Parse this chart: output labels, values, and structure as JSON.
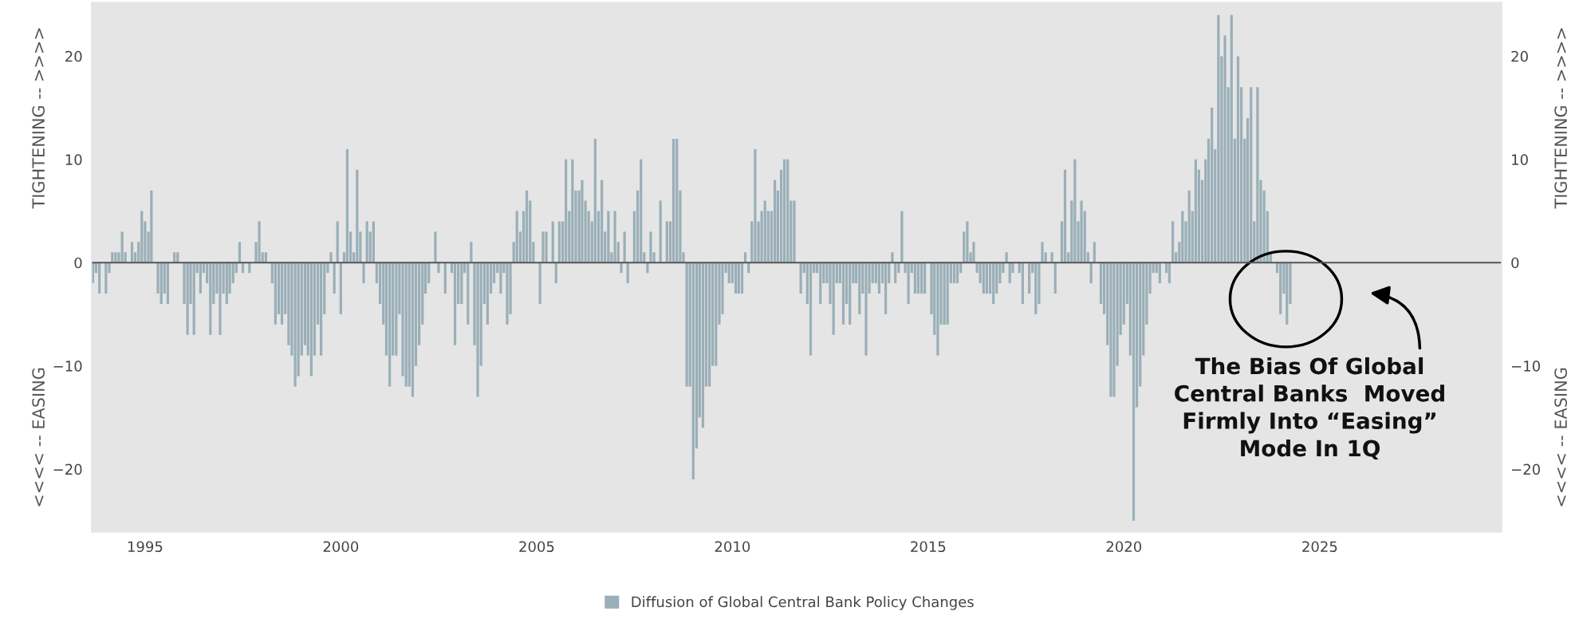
{
  "chart_data": {
    "type": "bar",
    "x": [
      "1993-09",
      "1993-10",
      "1993-11",
      "1993-12",
      "1994-01",
      "1994-02",
      "1994-03",
      "1994-04",
      "1994-05",
      "1994-06",
      "1994-07",
      "1994-08",
      "1994-09",
      "1994-10",
      "1994-11",
      "1994-12",
      "1995-01",
      "1995-02",
      "1995-03",
      "1995-04",
      "1995-05",
      "1995-06",
      "1995-07",
      "1995-08",
      "1995-09",
      "1995-10",
      "1995-11",
      "1995-12",
      "1996-01",
      "1996-02",
      "1996-03",
      "1996-04",
      "1996-05",
      "1996-06",
      "1996-07",
      "1996-08",
      "1996-09",
      "1996-10",
      "1996-11",
      "1996-12",
      "1997-01",
      "1997-02",
      "1997-03",
      "1997-04",
      "1997-05",
      "1997-06",
      "1997-07",
      "1997-08",
      "1997-09",
      "1997-10",
      "1997-11",
      "1997-12",
      "1998-01",
      "1998-02",
      "1998-03",
      "1998-04",
      "1998-05",
      "1998-06",
      "1998-07",
      "1998-08",
      "1998-09",
      "1998-10",
      "1998-11",
      "1998-12",
      "1999-01",
      "1999-02",
      "1999-03",
      "1999-04",
      "1999-05",
      "1999-06",
      "1999-07",
      "1999-08",
      "1999-09",
      "1999-10",
      "1999-11",
      "1999-12",
      "2000-01",
      "2000-02",
      "2000-03",
      "2000-04",
      "2000-05",
      "2000-06",
      "2000-07",
      "2000-08",
      "2000-09",
      "2000-10",
      "2000-11",
      "2000-12",
      "2001-01",
      "2001-02",
      "2001-03",
      "2001-04",
      "2001-05",
      "2001-06",
      "2001-07",
      "2001-08",
      "2001-09",
      "2001-10",
      "2001-11",
      "2001-12",
      "2002-01",
      "2002-02",
      "2002-03",
      "2002-04",
      "2002-05",
      "2002-06",
      "2002-07",
      "2002-08",
      "2002-09",
      "2002-10",
      "2002-11",
      "2002-12",
      "2003-01",
      "2003-02",
      "2003-03",
      "2003-04",
      "2003-05",
      "2003-06",
      "2003-07",
      "2003-08",
      "2003-09",
      "2003-10",
      "2003-11",
      "2003-12",
      "2004-01",
      "2004-02",
      "2004-03",
      "2004-04",
      "2004-05",
      "2004-06",
      "2004-07",
      "2004-08",
      "2004-09",
      "2004-10",
      "2004-11",
      "2004-12",
      "2005-01",
      "2005-02",
      "2005-03",
      "2005-04",
      "2005-05",
      "2005-06",
      "2005-07",
      "2005-08",
      "2005-09",
      "2005-10",
      "2005-11",
      "2005-12",
      "2006-01",
      "2006-02",
      "2006-03",
      "2006-04",
      "2006-05",
      "2006-06",
      "2006-07",
      "2006-08",
      "2006-09",
      "2006-10",
      "2006-11",
      "2006-12",
      "2007-01",
      "2007-02",
      "2007-03",
      "2007-04",
      "2007-05",
      "2007-06",
      "2007-07",
      "2007-08",
      "2007-09",
      "2007-10",
      "2007-11",
      "2007-12",
      "2008-01",
      "2008-02",
      "2008-03",
      "2008-04",
      "2008-05",
      "2008-06",
      "2008-07",
      "2008-08",
      "2008-09",
      "2008-10",
      "2008-11",
      "2008-12",
      "2009-01",
      "2009-02",
      "2009-03",
      "2009-04",
      "2009-05",
      "2009-06",
      "2009-07",
      "2009-08",
      "2009-09",
      "2009-10",
      "2009-11",
      "2009-12",
      "2010-01",
      "2010-02",
      "2010-03",
      "2010-04",
      "2010-05",
      "2010-06",
      "2010-07",
      "2010-08",
      "2010-09",
      "2010-10",
      "2010-11",
      "2010-12",
      "2011-01",
      "2011-02",
      "2011-03",
      "2011-04",
      "2011-05",
      "2011-06",
      "2011-07",
      "2011-08",
      "2011-09",
      "2011-10",
      "2011-11",
      "2011-12",
      "2012-01",
      "2012-02",
      "2012-03",
      "2012-04",
      "2012-05",
      "2012-06",
      "2012-07",
      "2012-08",
      "2012-09",
      "2012-10",
      "2012-11",
      "2012-12",
      "2013-01",
      "2013-02",
      "2013-03",
      "2013-04",
      "2013-05",
      "2013-06",
      "2013-07",
      "2013-08",
      "2013-09",
      "2013-10",
      "2013-11",
      "2013-12",
      "2014-01",
      "2014-02",
      "2014-03",
      "2014-04",
      "2014-05",
      "2014-06",
      "2014-07",
      "2014-08",
      "2014-09",
      "2014-10",
      "2014-11",
      "2014-12",
      "2015-01",
      "2015-02",
      "2015-03",
      "2015-04",
      "2015-05",
      "2015-06",
      "2015-07",
      "2015-08",
      "2015-09",
      "2015-10",
      "2015-11",
      "2015-12",
      "2016-01",
      "2016-02",
      "2016-03",
      "2016-04",
      "2016-05",
      "2016-06",
      "2016-07",
      "2016-08",
      "2016-09",
      "2016-10",
      "2016-11",
      "2016-12",
      "2017-01",
      "2017-02",
      "2017-03",
      "2017-04",
      "2017-05",
      "2017-06",
      "2017-07",
      "2017-08",
      "2017-09",
      "2017-10",
      "2017-11",
      "2017-12",
      "2018-01",
      "2018-02",
      "2018-03",
      "2018-04",
      "2018-05",
      "2018-06",
      "2018-07",
      "2018-08",
      "2018-09",
      "2018-10",
      "2018-11",
      "2018-12",
      "2019-01",
      "2019-02",
      "2019-03",
      "2019-04",
      "2019-05",
      "2019-06",
      "2019-07",
      "2019-08",
      "2019-09",
      "2019-10",
      "2019-11",
      "2019-12",
      "2020-01",
      "2020-02",
      "2020-03",
      "2020-04",
      "2020-05",
      "2020-06",
      "2020-07",
      "2020-08",
      "2020-09",
      "2020-10",
      "2020-11",
      "2020-12",
      "2021-01",
      "2021-02",
      "2021-03",
      "2021-04",
      "2021-05",
      "2021-06",
      "2021-07",
      "2021-08",
      "2021-09",
      "2021-10",
      "2021-11",
      "2021-12",
      "2022-01",
      "2022-02",
      "2022-03",
      "2022-04",
      "2022-05",
      "2022-06",
      "2022-07",
      "2022-08",
      "2022-09",
      "2022-10",
      "2022-11",
      "2022-12",
      "2023-01",
      "2023-02",
      "2023-03",
      "2023-04",
      "2023-05",
      "2023-06",
      "2023-07",
      "2023-08",
      "2023-09",
      "2023-10",
      "2023-11",
      "2023-12",
      "2024-01",
      "2024-02",
      "2024-03",
      "2024-04"
    ],
    "series": [
      {
        "name": "Diffusion of Global Central Bank Policy Changes",
        "color": "#9aafb8",
        "values": [
          -2,
          -1,
          -3,
          0,
          -3,
          -1,
          1,
          1,
          1,
          3,
          1,
          0,
          2,
          1,
          2,
          5,
          4,
          3,
          7,
          0,
          -3,
          -4,
          -3,
          -4,
          0,
          1,
          1,
          0,
          -4,
          -7,
          -4,
          -7,
          -1,
          -3,
          -1,
          -2,
          -7,
          -4,
          -3,
          -7,
          -3,
          -4,
          -3,
          -2,
          -1,
          2,
          -1,
          0,
          -1,
          0,
          2,
          4,
          1,
          1,
          0,
          -2,
          -6,
          -5,
          -6,
          -5,
          -8,
          -9,
          -12,
          -11,
          -9,
          -8,
          -9,
          -11,
          -9,
          -6,
          -9,
          -5,
          -1,
          1,
          -3,
          4,
          -5,
          1,
          11,
          3,
          1,
          9,
          3,
          -2,
          4,
          3,
          4,
          -2,
          -4,
          -6,
          -9,
          -12,
          -9,
          -9,
          -5,
          -11,
          -12,
          -12,
          -13,
          -10,
          -8,
          -6,
          -3,
          -2,
          0,
          3,
          -1,
          0,
          -3,
          0,
          -1,
          -8,
          -4,
          -4,
          -1,
          -6,
          2,
          -8,
          -13,
          -10,
          -4,
          -6,
          -3,
          -2,
          -1,
          -3,
          -1,
          -6,
          -5,
          2,
          5,
          3,
          5,
          7,
          6,
          2,
          0,
          -4,
          3,
          3,
          0,
          4,
          -2,
          4,
          4,
          10,
          5,
          10,
          7,
          7,
          8,
          6,
          5,
          4,
          12,
          5,
          8,
          3,
          5,
          1,
          5,
          2,
          -1,
          3,
          -2,
          0,
          5,
          7,
          10,
          1,
          -1,
          3,
          1,
          0,
          6,
          0,
          4,
          4,
          12,
          12,
          7,
          1,
          -12,
          -12,
          -21,
          -18,
          -15,
          -16,
          -12,
          -12,
          -10,
          -10,
          -6,
          -5,
          -1,
          -2,
          -2,
          -3,
          -3,
          -3,
          1,
          -1,
          4,
          11,
          4,
          5,
          6,
          5,
          5,
          8,
          7,
          9,
          10,
          10,
          6,
          6,
          0,
          -3,
          -1,
          -4,
          -9,
          -1,
          -1,
          -4,
          -2,
          -2,
          -4,
          -7,
          -2,
          -2,
          -6,
          -4,
          -6,
          -2,
          -2,
          -5,
          -3,
          -9,
          -3,
          -2,
          -2,
          -3,
          -2,
          -5,
          -2,
          1,
          -2,
          -1,
          5,
          -1,
          -4,
          -1,
          -3,
          -3,
          -3,
          -3,
          0,
          -5,
          -7,
          -9,
          -6,
          -6,
          -6,
          -2,
          -2,
          -2,
          -1,
          3,
          4,
          1,
          2,
          -1,
          -2,
          -3,
          -3,
          -3,
          -4,
          -3,
          -2,
          -1,
          1,
          -2,
          -1,
          0,
          -1,
          -4,
          0,
          -3,
          -1,
          -5,
          -4,
          2,
          1,
          0,
          1,
          -3,
          0,
          4,
          9,
          1,
          6,
          10,
          4,
          6,
          5,
          1,
          -2,
          2,
          0,
          -4,
          -5,
          -8,
          -13,
          -13,
          -10,
          -7,
          -6,
          -4,
          -9,
          -25,
          -14,
          -12,
          -9,
          -6,
          -3,
          -1,
          -1,
          -2,
          0,
          -1,
          -2,
          4,
          1,
          2,
          5,
          4,
          7,
          5,
          10,
          9,
          8,
          10,
          12,
          15,
          11,
          24,
          20,
          22,
          17,
          24,
          12,
          20,
          17,
          12,
          14,
          17,
          4,
          17,
          8,
          7,
          5,
          1,
          0,
          -1,
          -5,
          -3,
          -6,
          -4
        ]
      }
    ],
    "xlim": [
      "1993-08-20",
      "2029-08-25"
    ],
    "xticks": [
      "1995",
      "2000",
      "2005",
      "2010",
      "2015",
      "2020",
      "2025"
    ],
    "ylim": [
      -26.1,
      25.2
    ],
    "yticks": [
      -20,
      -10,
      0,
      10,
      20
    ],
    "y2lim": [
      -26.1,
      25.2
    ],
    "y2ticks": [
      -20,
      -10,
      0,
      10,
      20
    ],
    "ylabel": "<<<< -- EASING                              TIGHTENING -- >>>>",
    "y2label": "<<<< -- EASING                              TIGHTENING -- >>>>",
    "ref_lines": [
      {
        "axis": "y",
        "value": 0,
        "color": "#555555"
      }
    ],
    "annotations": [
      "The Bias Of Global\nCentral Banks  Moved\nFirmly Into “Easing”\nMode In 1Q"
    ],
    "legend": "bottom",
    "grid": false
  }
}
